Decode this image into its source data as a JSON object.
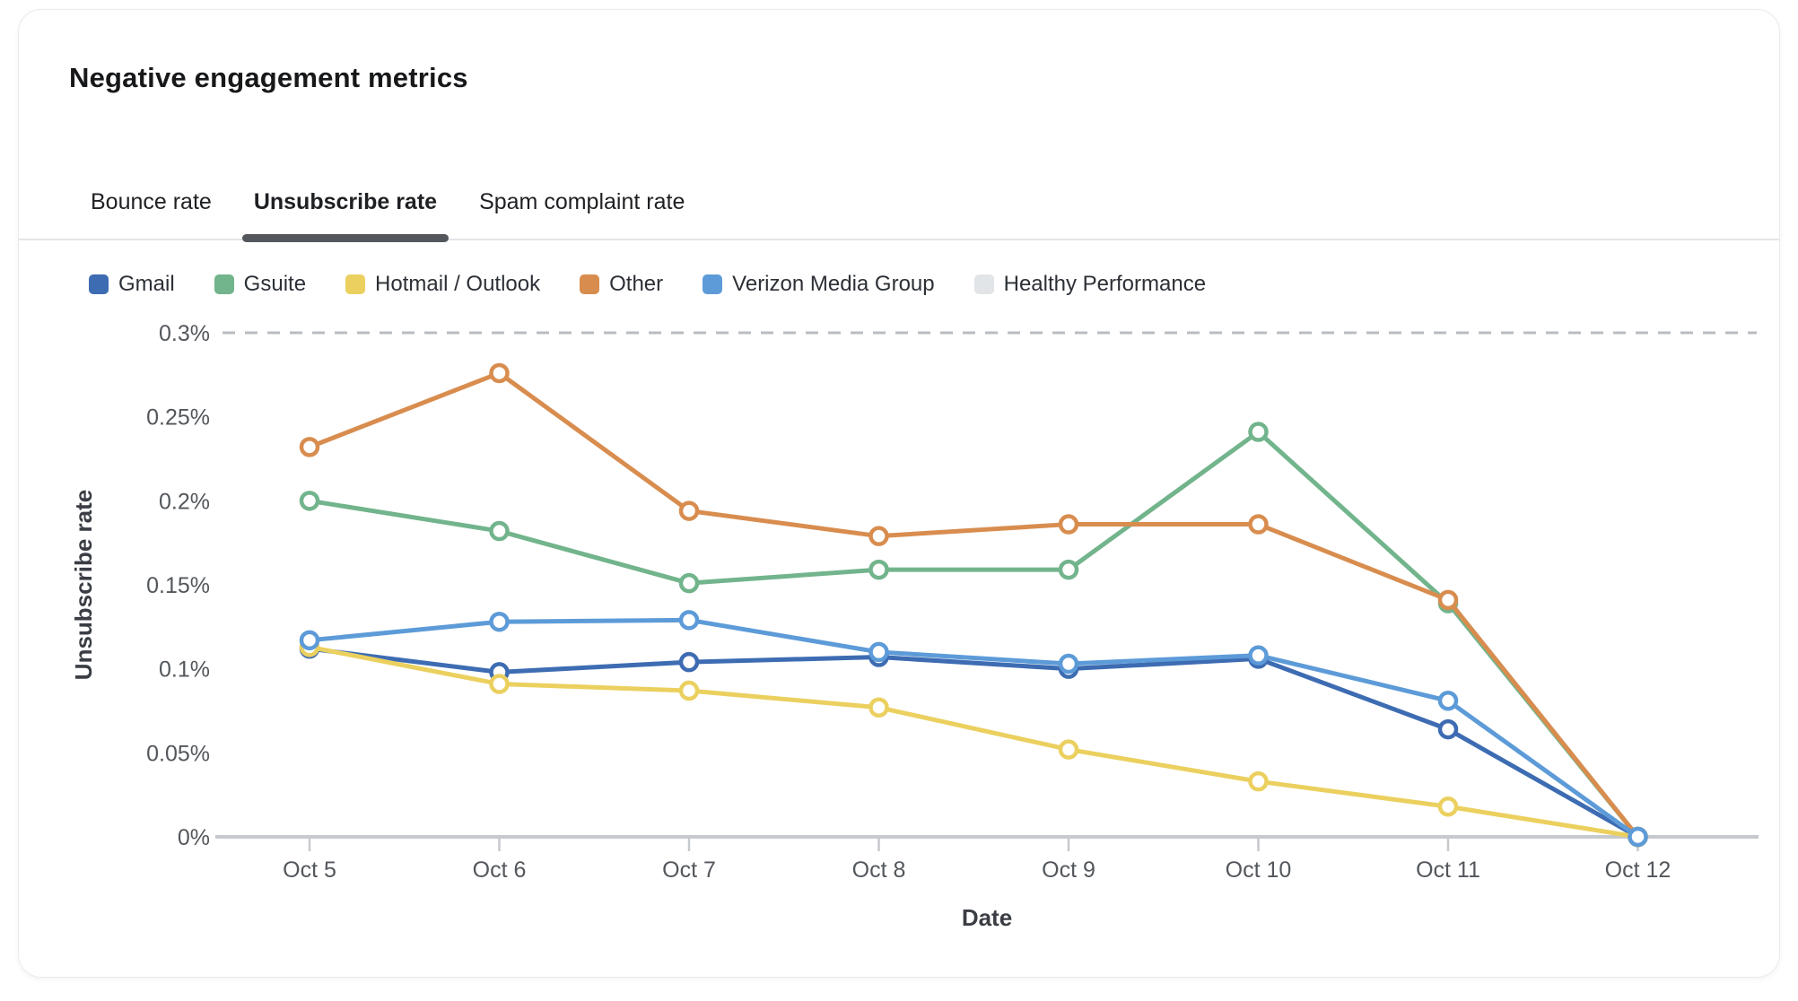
{
  "card": {
    "title": "Negative engagement metrics"
  },
  "tabs": [
    {
      "label": "Bounce rate",
      "active": false
    },
    {
      "label": "Unsubscribe rate",
      "active": true
    },
    {
      "label": "Spam complaint rate",
      "active": false
    }
  ],
  "chart_data": {
    "type": "line",
    "xlabel": "Date",
    "ylabel": "Unsubscribe rate",
    "categories": [
      "Oct 5",
      "Oct 6",
      "Oct 7",
      "Oct 8",
      "Oct 9",
      "Oct 10",
      "Oct 11",
      "Oct 12"
    ],
    "ylim": [
      0,
      0.3
    ],
    "y_ticks": [
      {
        "label": "0.3%",
        "value": 0.3
      },
      {
        "label": "0.25%",
        "value": 0.25
      },
      {
        "label": "0.2%",
        "value": 0.2
      },
      {
        "label": "0.15%",
        "value": 0.15
      },
      {
        "label": "0.1%",
        "value": 0.1
      },
      {
        "label": "0.05%",
        "value": 0.05
      },
      {
        "label": "0%",
        "value": 0
      }
    ],
    "unit": "percent",
    "grid": "reference line only, dashed",
    "legend_position": "top",
    "series": [
      {
        "name": "Gmail",
        "color": "#3d6cb2",
        "values": [
          0.112,
          0.098,
          0.104,
          0.107,
          0.1,
          0.106,
          0.064,
          0
        ]
      },
      {
        "name": "Gsuite",
        "color": "#72b48c",
        "values": [
          0.2,
          0.182,
          0.151,
          0.159,
          0.159,
          0.241,
          0.139,
          0
        ]
      },
      {
        "name": "Hotmail / Outlook",
        "color": "#ebd05f",
        "values": [
          0.113,
          0.091,
          0.087,
          0.077,
          0.052,
          0.033,
          0.018,
          0
        ]
      },
      {
        "name": "Other",
        "color": "#d88d4f",
        "values": [
          0.232,
          0.276,
          0.194,
          0.179,
          0.186,
          0.186,
          0.141,
          0
        ]
      },
      {
        "name": "Verizon Media Group",
        "color": "#5d9bd8",
        "values": [
          0.117,
          0.128,
          0.129,
          0.11,
          0.103,
          0.108,
          0.081,
          0
        ]
      }
    ],
    "reference_line": {
      "name": "Healthy Performance",
      "color": "#e1e5e8",
      "value": 0.3,
      "style": "dashed"
    }
  }
}
